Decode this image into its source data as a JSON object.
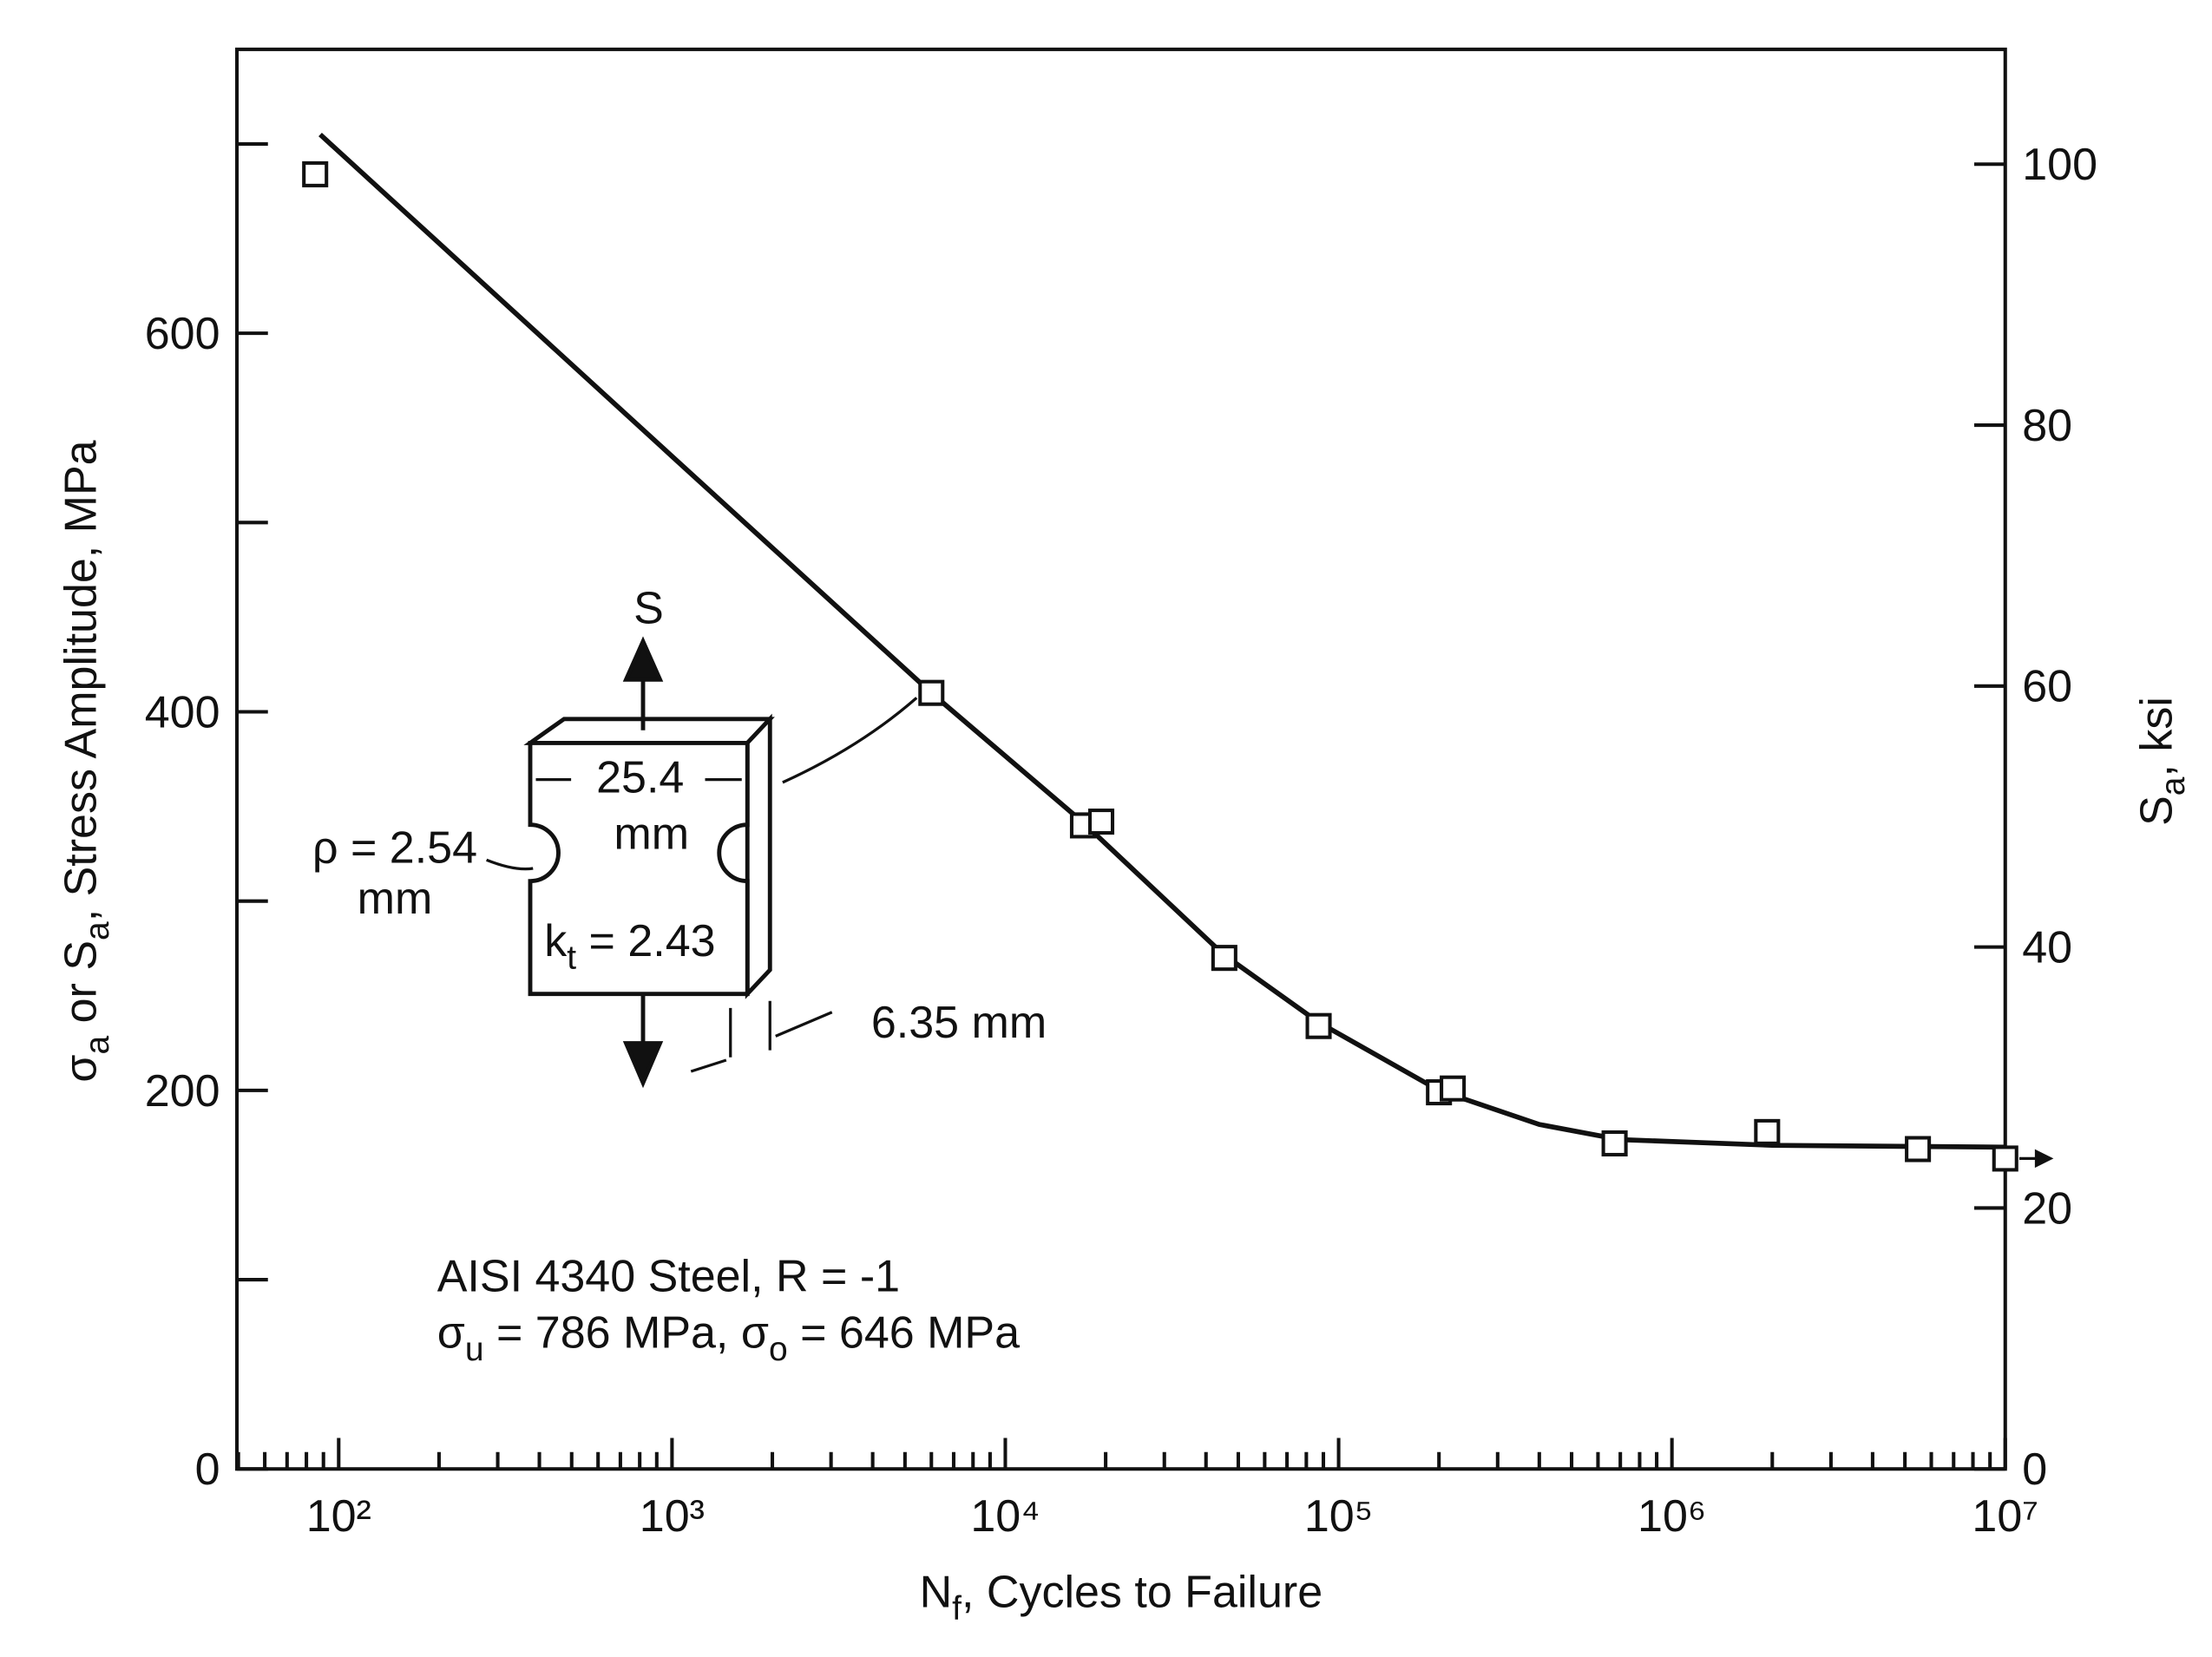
{
  "chart_data": {
    "type": "scatter",
    "x_label": [
      "N",
      "f",
      ", Cycles to Failure"
    ],
    "y_label": [
      "σ",
      "a",
      " or S",
      "a",
      ", Stress Amplitude, MPa"
    ],
    "y2_label": [
      "S",
      "a",
      ", ksi"
    ],
    "x_log": true,
    "xlim": [
      49.5,
      10000000
    ],
    "xticks": [
      {
        "value": 100,
        "label": "10²"
      },
      {
        "value": 1000,
        "label": "10³"
      },
      {
        "value": 10000,
        "label": "10⁴"
      },
      {
        "value": 100000,
        "label": "10⁵"
      },
      {
        "value": 1000000,
        "label": "10⁶"
      },
      {
        "value": 10000000,
        "label": "10⁷"
      }
    ],
    "xminor_ticks": [
      50,
      60,
      70,
      80,
      90,
      200,
      300,
      400,
      500,
      600,
      700,
      800,
      900,
      2000,
      3000,
      4000,
      5000,
      6000,
      7000,
      8000,
      9000,
      20000,
      30000,
      40000,
      50000,
      60000,
      70000,
      80000,
      90000,
      200000,
      300000,
      400000,
      500000,
      600000,
      700000,
      800000,
      900000,
      2000000,
      3000000,
      4000000,
      5000000,
      6000000,
      7000000,
      8000000,
      9000000
    ],
    "ylim": [
      0,
      750
    ],
    "yticks": [
      0,
      200,
      400,
      600
    ],
    "yminor_ticks": [
      100,
      300,
      500,
      700
    ],
    "y2lim": [
      0,
      108.8
    ],
    "y2ticks": [
      0,
      20,
      40,
      60,
      80,
      100
    ],
    "points": {
      "x": [
        85,
        6000,
        17100,
        19400,
        45400,
        87100,
        200000,
        220000,
        673000,
        1930000,
        5470000,
        10000000
      ],
      "values": [
        684,
        410,
        340,
        342,
        270,
        234,
        199,
        201,
        172,
        178,
        169,
        164
      ]
    },
    "curve": {
      "x": [
        88,
        1000,
        6000,
        17000,
        45000,
        87000,
        200000,
        400000,
        700000,
        2000000,
        10000000
      ],
      "values": [
        705,
        535,
        410,
        342,
        272,
        236,
        200,
        182,
        174,
        171,
        170
      ]
    },
    "annotations": {
      "line1": "AISI 4340 Steel, R = -1",
      "line2": [
        "σ",
        "u",
        " = 786 MPa, σ",
        "o",
        " = 646 MPa"
      ]
    },
    "specimen": {
      "load": "S",
      "width": "25.4",
      "width_unit": "mm",
      "radius": "ρ = 2.54",
      "radius_unit": "mm",
      "kt": [
        "k",
        "t",
        " = 2.43"
      ],
      "thickness": "6.35 mm"
    }
  }
}
